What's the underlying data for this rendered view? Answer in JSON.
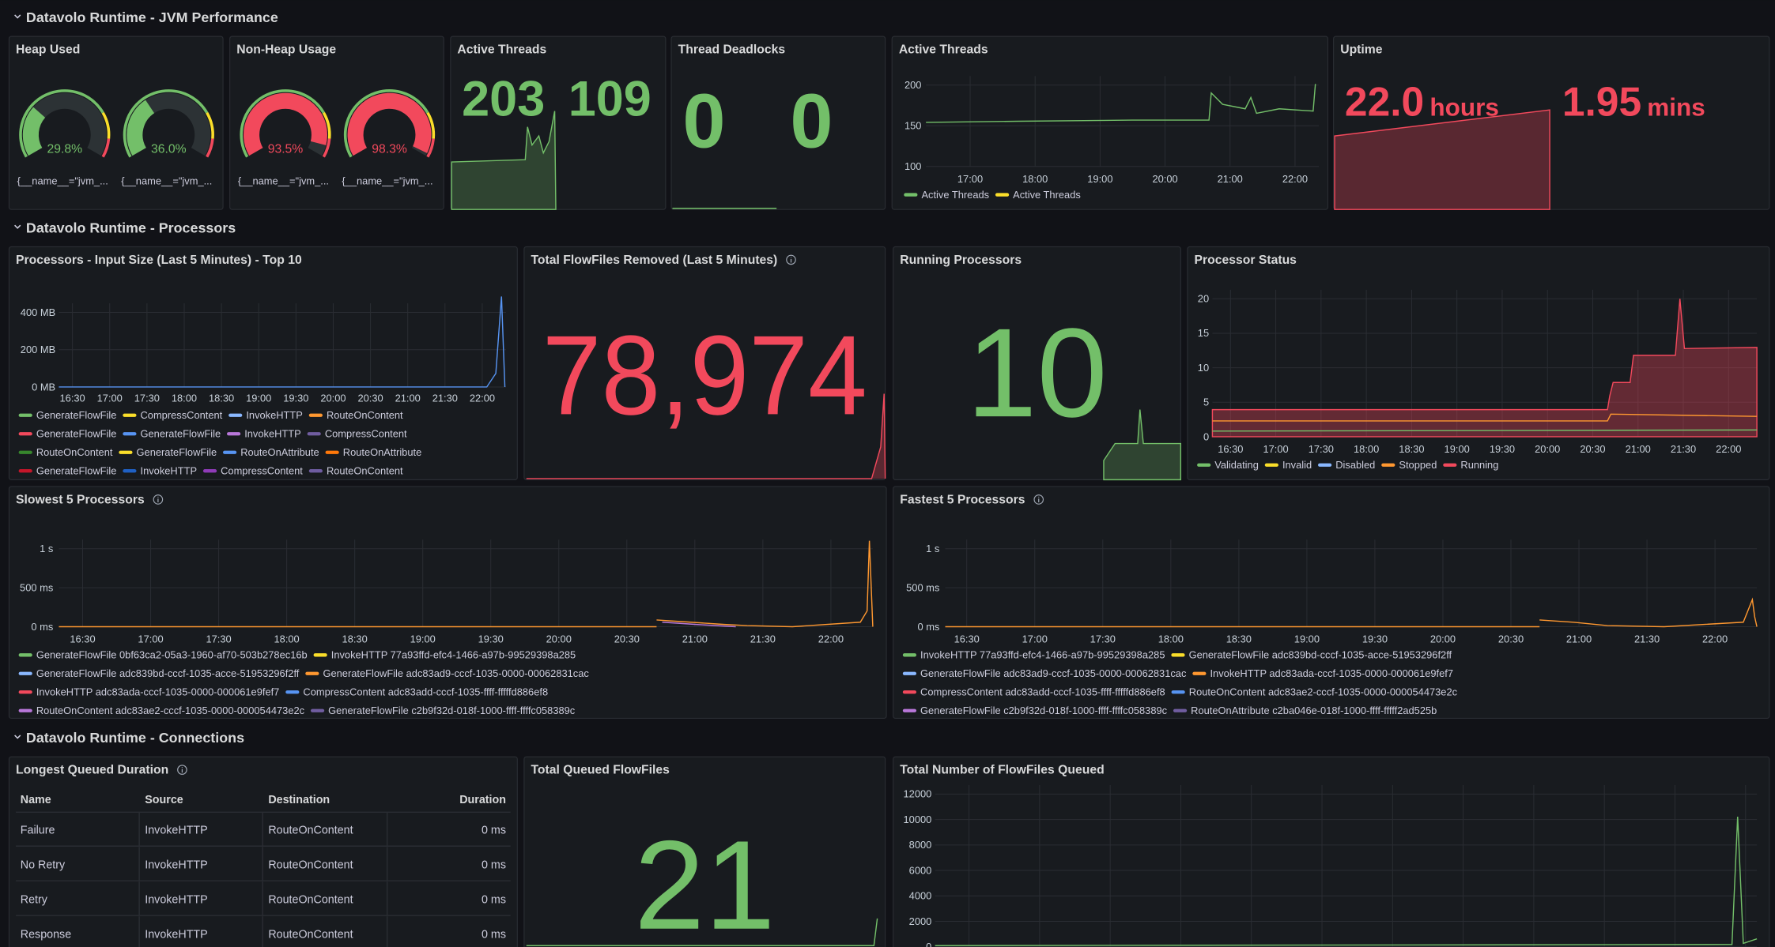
{
  "sections": [
    "Datavolo Runtime - JVM Performance",
    "Datavolo Runtime - Processors",
    "Datavolo Runtime - Connections"
  ],
  "panels": [
    {
      "title": "Heap Used",
      "kind": "gauge",
      "gauges": [
        {
          "text": "29.8%",
          "label": "{__name__=\"jvm_...",
          "color": "#73bf69"
        },
        {
          "text": "36.0%",
          "label": "{__name__=\"jvm_...",
          "color": "#73bf69"
        }
      ]
    },
    {
      "title": "Non-Heap Usage",
      "kind": "gauge",
      "gauges": [
        {
          "text": "93.5%",
          "label": "{__name__=\"jvm_...",
          "color": "#f2495c"
        },
        {
          "text": "98.3%",
          "label": "{__name__=\"jvm_...",
          "color": "#f2495c"
        }
      ]
    },
    {
      "title": "Active Threads",
      "kind": "stat",
      "values": [
        {
          "text": "203",
          "color": "#73bf69"
        },
        {
          "text": "109",
          "color": "#73bf69"
        }
      ]
    },
    {
      "title": "Thread Deadlocks",
      "kind": "stat",
      "values": [
        {
          "text": "0",
          "color": "#73bf69"
        },
        {
          "text": "0",
          "color": "#73bf69"
        }
      ]
    },
    {
      "title": "Active Threads",
      "kind": "ts",
      "yticks": [
        "200",
        "150",
        "100"
      ],
      "xticks": [
        "17:00",
        "18:00",
        "19:00",
        "20:00",
        "21:00",
        "22:00"
      ],
      "legend": [
        [
          {
            "name": "Active Threads",
            "color": "#73bf69"
          },
          {
            "name": "Active Threads",
            "color": "#fade2a"
          }
        ]
      ]
    },
    {
      "title": "Uptime",
      "kind": "stat",
      "values": [
        {
          "text": "22.0",
          "unit": "hours",
          "color": "#f2495c"
        },
        {
          "text": "1.95",
          "unit": "mins",
          "color": "#f2495c"
        }
      ]
    },
    {
      "title": "Processors - Input Size (Last 5 Minutes) - Top 10",
      "kind": "ts",
      "yticks": [
        "400 MB",
        "200 MB",
        "0 MB"
      ],
      "xticks": [
        "16:30",
        "17:00",
        "17:30",
        "18:00",
        "18:30",
        "19:00",
        "19:30",
        "20:00",
        "20:30",
        "21:00",
        "21:30",
        "22:00"
      ],
      "legend": [
        [
          {
            "name": "GenerateFlowFile",
            "color": "#73bf69"
          },
          {
            "name": "CompressContent",
            "color": "#fade2a"
          },
          {
            "name": "InvokeHTTP",
            "color": "#8ab8ff"
          },
          {
            "name": "RouteOnContent",
            "color": "#ff9830"
          }
        ],
        [
          {
            "name": "GenerateFlowFile",
            "color": "#f2495c"
          },
          {
            "name": "GenerateFlowFile",
            "color": "#5794f2"
          },
          {
            "name": "InvokeHTTP",
            "color": "#b877d9"
          },
          {
            "name": "CompressContent",
            "color": "#705da0"
          }
        ],
        [
          {
            "name": "RouteOnContent",
            "color": "#37872d"
          },
          {
            "name": "GenerateFlowFile",
            "color": "#fade2a"
          },
          {
            "name": "RouteOnAttribute",
            "color": "#5794f2"
          },
          {
            "name": "RouteOnAttribute",
            "color": "#ff780a"
          }
        ],
        [
          {
            "name": "GenerateFlowFile",
            "color": "#c4162a"
          },
          {
            "name": "InvokeHTTP",
            "color": "#1f60c4"
          },
          {
            "name": "CompressContent",
            "color": "#8f3bb8"
          },
          {
            "name": "RouteOnContent",
            "color": "#6e5ca0"
          }
        ]
      ]
    },
    {
      "title": "Total FlowFiles Removed (Last 5 Minutes)",
      "kind": "big",
      "info": true,
      "text": "78,974",
      "color": "#f2495c"
    },
    {
      "title": "Running Processors",
      "kind": "big",
      "text": "10",
      "color": "#73bf69"
    },
    {
      "title": "Processor Status",
      "kind": "ts",
      "yticks": [
        "20",
        "15",
        "10",
        "5",
        "0"
      ],
      "xticks": [
        "16:30",
        "17:00",
        "17:30",
        "18:00",
        "18:30",
        "19:00",
        "19:30",
        "20:00",
        "20:30",
        "21:00",
        "21:30",
        "22:00"
      ],
      "legend": [
        [
          {
            "name": "Validating",
            "color": "#73bf69"
          },
          {
            "name": "Invalid",
            "color": "#fade2a"
          },
          {
            "name": "Disabled",
            "color": "#8ab8ff"
          },
          {
            "name": "Stopped",
            "color": "#ff9830"
          },
          {
            "name": "Running",
            "color": "#f2495c"
          }
        ]
      ]
    },
    {
      "title": "Slowest 5 Processors",
      "kind": "ts",
      "info": true,
      "yticks": [
        "1 s",
        "500 ms",
        "0 ms"
      ],
      "xticks": [
        "16:30",
        "17:00",
        "17:30",
        "18:00",
        "18:30",
        "19:00",
        "19:30",
        "20:00",
        "20:30",
        "21:00",
        "21:30",
        "22:00"
      ],
      "legend": [
        [
          {
            "name": "GenerateFlowFile 0bf63ca2-05a3-1960-af70-503b278ec16b",
            "color": "#73bf69"
          },
          {
            "name": "InvokeHTTP 77a93ffd-efc4-1466-a97b-99529398a285",
            "color": "#fade2a"
          }
        ],
        [
          {
            "name": "GenerateFlowFile adc839bd-cccf-1035-acce-51953296f2ff",
            "color": "#8ab8ff"
          },
          {
            "name": "GenerateFlowFile adc83ad9-cccf-1035-0000-00062831cac",
            "color": "#ff9830"
          }
        ],
        [
          {
            "name": "InvokeHTTP adc83ada-cccf-1035-0000-000061e9fef7",
            "color": "#f2495c"
          },
          {
            "name": "CompressContent adc83add-cccf-1035-ffff-fffffd886ef8",
            "color": "#5794f2"
          }
        ],
        [
          {
            "name": "RouteOnContent adc83ae2-cccf-1035-0000-000054473e2c",
            "color": "#b877d9"
          },
          {
            "name": "GenerateFlowFile c2b9f32d-018f-1000-ffff-ffffc058389c",
            "color": "#705da0"
          }
        ]
      ]
    },
    {
      "title": "Fastest 5 Processors",
      "kind": "ts",
      "info": true,
      "yticks": [
        "1 s",
        "500 ms",
        "0 ms"
      ],
      "xticks": [
        "16:30",
        "17:00",
        "17:30",
        "18:00",
        "18:30",
        "19:00",
        "19:30",
        "20:00",
        "20:30",
        "21:00",
        "21:30",
        "22:00"
      ],
      "legend": [
        [
          {
            "name": "InvokeHTTP 77a93ffd-efc4-1466-a97b-99529398a285",
            "color": "#73bf69"
          },
          {
            "name": "GenerateFlowFile adc839bd-cccf-1035-acce-51953296f2ff",
            "color": "#fade2a"
          }
        ],
        [
          {
            "name": "GenerateFlowFile adc83ad9-cccf-1035-0000-00062831cac",
            "color": "#8ab8ff"
          },
          {
            "name": "InvokeHTTP adc83ada-cccf-1035-0000-000061e9fef7",
            "color": "#ff9830"
          }
        ],
        [
          {
            "name": "CompressContent adc83add-cccf-1035-ffff-fffffd886ef8",
            "color": "#f2495c"
          },
          {
            "name": "RouteOnContent adc83ae2-cccf-1035-0000-000054473e2c",
            "color": "#5794f2"
          }
        ],
        [
          {
            "name": "GenerateFlowFile c2b9f32d-018f-1000-ffff-ffffc058389c",
            "color": "#b877d9"
          },
          {
            "name": "RouteOnAttribute c2ba046e-018f-1000-ffff-fffff2ad525b",
            "color": "#705da0"
          }
        ]
      ]
    },
    {
      "title": "Longest Queued Duration",
      "kind": "table",
      "info": true,
      "columns": [
        "Name",
        "Source",
        "Destination",
        "Duration"
      ],
      "rows": [
        [
          "Failure",
          "InvokeHTTP",
          "RouteOnContent",
          "0 ms"
        ],
        [
          "No Retry",
          "InvokeHTTP",
          "RouteOnContent",
          "0 ms"
        ],
        [
          "Retry",
          "InvokeHTTP",
          "RouteOnContent",
          "0 ms"
        ],
        [
          "Response",
          "InvokeHTTP",
          "RouteOnContent",
          "0 ms"
        ]
      ]
    },
    {
      "title": "Total Queued FlowFiles",
      "kind": "big",
      "text": "21",
      "color": "#73bf69"
    },
    {
      "title": "Total Number of FlowFiles Queued",
      "kind": "ts",
      "yticks": [
        "12000",
        "10000",
        "8000",
        "6000",
        "4000",
        "2000",
        "0"
      ],
      "xticks": [],
      "legend": []
    }
  ]
}
